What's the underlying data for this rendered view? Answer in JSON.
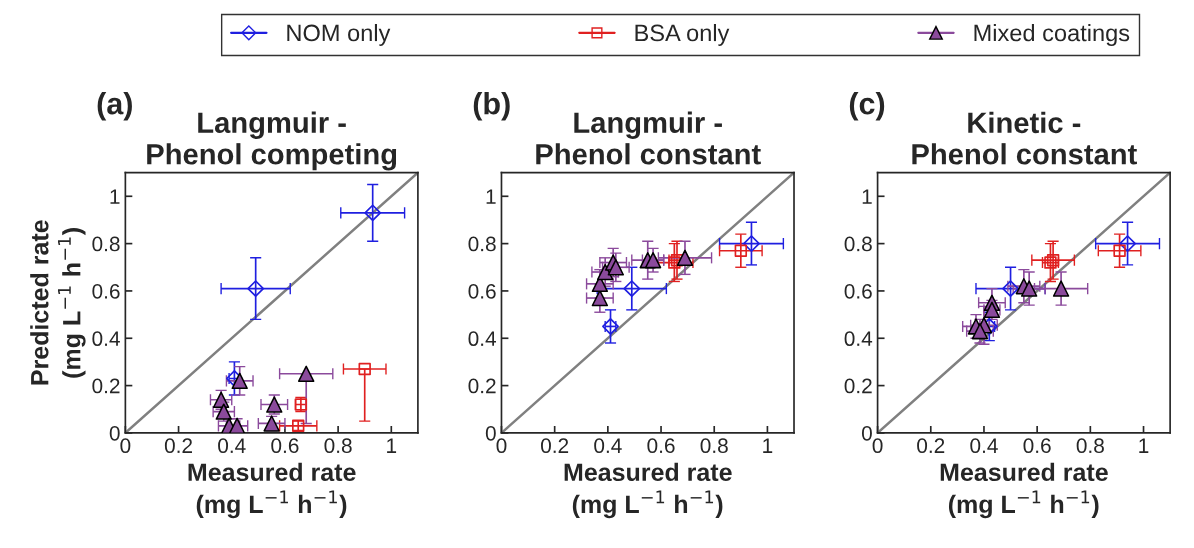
{
  "chart_data": [
    {
      "type": "scatter",
      "title": "Langmuir -\nPhenol competing",
      "xlabel": "Measured rate\n(mg L$^{−1}$ h$^{−1}$)",
      "ylabel": "Predicted rate\n(mg L$^{−1}$ h$^{−1}$)",
      "annotations": [
        "(a)"
      ],
      "xlim": [
        0,
        1.1
      ],
      "ylim": [
        0,
        1.1
      ],
      "xticks": [
        0,
        0.2,
        0.4,
        0.6,
        0.8,
        1
      ],
      "yticks": [
        0,
        0.2,
        0.4,
        0.6,
        0.8,
        1
      ],
      "legend": "top",
      "grid": false,
      "series": [
        {
          "type": "line",
          "color": "#808080",
          "x": [
            0,
            1.1
          ],
          "values": [
            0,
            1.1
          ],
          "marker": "none"
        },
        {
          "name": "NOM only",
          "color": "#1f1fe0",
          "marker": "diamond",
          "x": [
            0.93,
            0.49,
            0.41
          ],
          "values": [
            0.93,
            0.61,
            0.23
          ],
          "xerrors": [
            0.12,
            0.13,
            0.02
          ],
          "errors": [
            0.12,
            0.13,
            0.07
          ]
        },
        {
          "name": "BSA only",
          "color": "#e02020",
          "marker": "square",
          "x": [
            0.9,
            0.66,
            0.65
          ],
          "values": [
            0.27,
            0.12,
            0.03
          ],
          "xerrors": [
            0.08,
            0.02,
            0.07
          ],
          "errors": [
            [
              0.05,
              0.27
            ],
            0.03,
            0.02
          ]
        },
        {
          "name": "Mixed coatings",
          "color": "#8b4a9c",
          "marker": "triangle",
          "x": [
            0.68,
            0.43,
            0.36,
            0.37,
            0.39,
            0.42,
            0.56,
            0.55
          ],
          "values": [
            0.25,
            0.22,
            0.14,
            0.09,
            0.03,
            0.03,
            0.12,
            0.04
          ],
          "xerrors": [
            0.1,
            0.05,
            0.04,
            0.04,
            0.04,
            0.04,
            0.05,
            0.05
          ],
          "errors": [
            [
              0.04,
              0.25
            ],
            0.06,
            0.04,
            0.04,
            0.03,
            0.03,
            0.04,
            0.03
          ]
        }
      ]
    },
    {
      "type": "scatter",
      "title": "Langmuir -\nPhenol constant",
      "xlabel": "Measured rate\n(mg L$^{−1}$ h$^{−1}$)",
      "annotations": [
        "(b)"
      ],
      "xlim": [
        0,
        1.1
      ],
      "ylim": [
        0,
        1.1
      ],
      "xticks": [
        0,
        0.2,
        0.4,
        0.6,
        0.8,
        1
      ],
      "yticks": [
        0,
        0.2,
        0.4,
        0.6,
        0.8,
        1
      ],
      "grid": false,
      "series": [
        {
          "type": "line",
          "color": "#808080",
          "x": [
            0,
            1.1
          ],
          "values": [
            0,
            1.1
          ],
          "marker": "none"
        },
        {
          "color": "#1f1fe0",
          "marker": "diamond",
          "x": [
            0.94,
            0.49,
            0.41
          ],
          "values": [
            0.8,
            0.61,
            0.45
          ],
          "xerrors": [
            0.12,
            0.13,
            0.02
          ],
          "errors": [
            0.09,
            0.09,
            0.07
          ]
        },
        {
          "color": "#e02020",
          "marker": "square",
          "x": [
            0.9,
            0.65,
            0.66
          ],
          "values": [
            0.77,
            0.72,
            0.73
          ],
          "xerrors": [
            0.08,
            0.07,
            0.03
          ],
          "errors": [
            0.07,
            0.08,
            0.08
          ]
        },
        {
          "color": "#8b4a9c",
          "marker": "triangle",
          "x": [
            0.37,
            0.37,
            0.39,
            0.42,
            0.43,
            0.55,
            0.57,
            0.69
          ],
          "values": [
            0.57,
            0.63,
            0.68,
            0.72,
            0.7,
            0.73,
            0.73,
            0.74
          ],
          "xerrors": [
            0.05,
            0.05,
            0.05,
            0.05,
            0.05,
            0.06,
            0.04,
            0.1
          ],
          "errors": [
            0.06,
            0.06,
            0.06,
            0.06,
            0.06,
            0.08,
            0.05,
            0.07
          ]
        }
      ]
    },
    {
      "type": "scatter",
      "title": "Kinetic -\nPhenol constant",
      "xlabel": "Measured rate\n(mg L$^{−1}$ h$^{−1}$)",
      "annotations": [
        "(c)"
      ],
      "xlim": [
        0,
        1.1
      ],
      "ylim": [
        0,
        1.1
      ],
      "xticks": [
        0,
        0.2,
        0.4,
        0.6,
        0.8,
        1
      ],
      "yticks": [
        0,
        0.2,
        0.4,
        0.6,
        0.8,
        1
      ],
      "grid": false,
      "series": [
        {
          "type": "line",
          "color": "#808080",
          "x": [
            0,
            1.1
          ],
          "values": [
            0,
            1.1
          ],
          "marker": "none"
        },
        {
          "color": "#1f1fe0",
          "marker": "diamond",
          "x": [
            0.94,
            0.5,
            0.42
          ],
          "values": [
            0.8,
            0.61,
            0.45
          ],
          "xerrors": [
            0.12,
            0.13,
            0.02
          ],
          "errors": [
            0.09,
            0.09,
            0.06
          ]
        },
        {
          "color": "#e02020",
          "marker": "square",
          "x": [
            0.91,
            0.66,
            0.65
          ],
          "values": [
            0.77,
            0.73,
            0.72
          ],
          "xerrors": [
            0.08,
            0.08,
            0.03
          ],
          "errors": [
            0.07,
            0.08,
            0.08
          ]
        },
        {
          "color": "#8b4a9c",
          "marker": "triangle",
          "x": [
            0.37,
            0.4,
            0.43,
            0.43,
            0.55,
            0.57,
            0.69,
            0.385
          ],
          "values": [
            0.45,
            0.455,
            0.55,
            0.52,
            0.62,
            0.61,
            0.61,
            0.43
          ],
          "xerrors": [
            0.05,
            0.05,
            0.05,
            0.03,
            0.06,
            0.06,
            0.1,
            0.05
          ],
          "errors": [
            0.05,
            0.08,
            0.06,
            0.04,
            0.07,
            0.07,
            0.07,
            0.05
          ]
        }
      ]
    }
  ]
}
